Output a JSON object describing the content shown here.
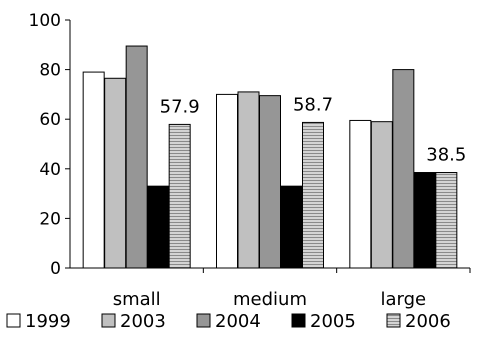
{
  "chart_data": {
    "type": "bar",
    "title": "",
    "xlabel": "",
    "ylabel": "",
    "categories": [
      "small",
      "medium",
      "large"
    ],
    "ylim": [
      0,
      100
    ],
    "yticks": [
      0,
      20,
      40,
      60,
      80,
      100
    ],
    "grid": false,
    "legend_position": "bottom",
    "series": [
      {
        "name": "1999",
        "values": [
          79,
          70,
          59.5
        ],
        "color": "#ffffff",
        "pattern": "none"
      },
      {
        "name": "2003",
        "values": [
          76.5,
          71,
          59
        ],
        "color": "#c0c0c0",
        "pattern": "none"
      },
      {
        "name": "2004",
        "values": [
          89.5,
          69.5,
          80
        ],
        "color": "#969696",
        "pattern": "none"
      },
      {
        "name": "2005",
        "values": [
          33,
          33,
          38.5
        ],
        "color": "#000000",
        "pattern": "none"
      },
      {
        "name": "2006",
        "values": [
          57.9,
          58.7,
          38.5
        ],
        "color": "#c0c0c0",
        "pattern": "horizontal-stripes"
      }
    ],
    "data_labels": [
      {
        "category": "small",
        "series": "2006",
        "text": "57.9"
      },
      {
        "category": "medium",
        "series": "2006",
        "text": "58.7"
      },
      {
        "category": "large",
        "series": "2006",
        "text": "38.5"
      }
    ]
  }
}
